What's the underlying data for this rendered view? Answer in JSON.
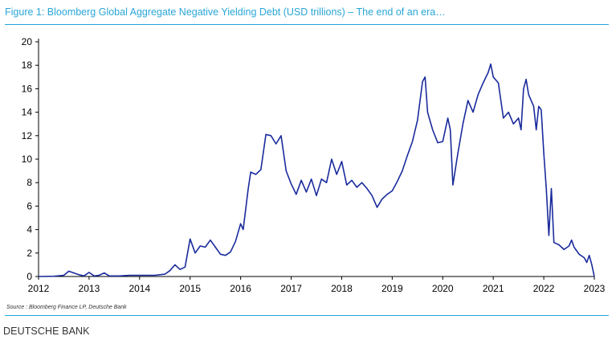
{
  "chart_data": {
    "type": "line",
    "title": "Figure 1: Bloomberg Global Aggregate Negative Yielding Debt (USD trillions) – The end of an era…",
    "xlabel": "",
    "ylabel": "",
    "xlim": [
      2012,
      2023
    ],
    "ylim": [
      0,
      20
    ],
    "x_ticks": [
      "2012",
      "2013",
      "2014",
      "2015",
      "2016",
      "2017",
      "2018",
      "2019",
      "2020",
      "2021",
      "2022",
      "2023"
    ],
    "y_ticks": [
      "0",
      "2",
      "4",
      "6",
      "8",
      "10",
      "12",
      "14",
      "16",
      "18",
      "20"
    ],
    "grid": false,
    "legend": "none",
    "line_color": "#1a2b9c",
    "series": [
      {
        "values": [
          [
            2012.0,
            0.0
          ],
          [
            2012.3,
            0.02
          ],
          [
            2012.5,
            0.1
          ],
          [
            2012.6,
            0.45
          ],
          [
            2012.7,
            0.3
          ],
          [
            2012.8,
            0.15
          ],
          [
            2012.9,
            0.05
          ],
          [
            2013.0,
            0.35
          ],
          [
            2013.1,
            0.05
          ],
          [
            2013.2,
            0.1
          ],
          [
            2013.3,
            0.3
          ],
          [
            2013.4,
            0.05
          ],
          [
            2013.6,
            0.05
          ],
          [
            2013.8,
            0.1
          ],
          [
            2014.0,
            0.1
          ],
          [
            2014.3,
            0.1
          ],
          [
            2014.5,
            0.2
          ],
          [
            2014.6,
            0.5
          ],
          [
            2014.7,
            1.0
          ],
          [
            2014.8,
            0.6
          ],
          [
            2014.9,
            0.8
          ],
          [
            2015.0,
            3.2
          ],
          [
            2015.1,
            2.0
          ],
          [
            2015.2,
            2.6
          ],
          [
            2015.3,
            2.5
          ],
          [
            2015.4,
            3.1
          ],
          [
            2015.5,
            2.5
          ],
          [
            2015.6,
            1.9
          ],
          [
            2015.7,
            1.8
          ],
          [
            2015.8,
            2.1
          ],
          [
            2015.9,
            3.0
          ],
          [
            2016.0,
            4.5
          ],
          [
            2016.05,
            4.0
          ],
          [
            2016.15,
            7.5
          ],
          [
            2016.2,
            8.9
          ],
          [
            2016.3,
            8.7
          ],
          [
            2016.4,
            9.1
          ],
          [
            2016.5,
            12.1
          ],
          [
            2016.6,
            12.0
          ],
          [
            2016.7,
            11.3
          ],
          [
            2016.8,
            12.0
          ],
          [
            2016.9,
            9.0
          ],
          [
            2017.0,
            7.9
          ],
          [
            2017.1,
            7.0
          ],
          [
            2017.2,
            8.2
          ],
          [
            2017.3,
            7.2
          ],
          [
            2017.4,
            8.3
          ],
          [
            2017.5,
            6.9
          ],
          [
            2017.6,
            8.3
          ],
          [
            2017.7,
            8.0
          ],
          [
            2017.8,
            10.0
          ],
          [
            2017.9,
            8.7
          ],
          [
            2018.0,
            9.8
          ],
          [
            2018.1,
            7.8
          ],
          [
            2018.2,
            8.2
          ],
          [
            2018.3,
            7.6
          ],
          [
            2018.4,
            8.0
          ],
          [
            2018.5,
            7.5
          ],
          [
            2018.6,
            6.9
          ],
          [
            2018.7,
            5.9
          ],
          [
            2018.8,
            6.6
          ],
          [
            2018.9,
            7.0
          ],
          [
            2019.0,
            7.3
          ],
          [
            2019.1,
            8.1
          ],
          [
            2019.2,
            9.0
          ],
          [
            2019.3,
            10.3
          ],
          [
            2019.4,
            11.5
          ],
          [
            2019.5,
            13.3
          ],
          [
            2019.6,
            16.6
          ],
          [
            2019.65,
            17.0
          ],
          [
            2019.7,
            14.0
          ],
          [
            2019.8,
            12.5
          ],
          [
            2019.9,
            11.4
          ],
          [
            2020.0,
            11.5
          ],
          [
            2020.1,
            13.5
          ],
          [
            2020.15,
            12.5
          ],
          [
            2020.2,
            7.8
          ],
          [
            2020.3,
            10.5
          ],
          [
            2020.4,
            13.0
          ],
          [
            2020.5,
            15.0
          ],
          [
            2020.6,
            14.0
          ],
          [
            2020.7,
            15.5
          ],
          [
            2020.8,
            16.5
          ],
          [
            2020.9,
            17.4
          ],
          [
            2020.95,
            18.1
          ],
          [
            2021.0,
            17.0
          ],
          [
            2021.1,
            16.5
          ],
          [
            2021.2,
            13.5
          ],
          [
            2021.3,
            14.0
          ],
          [
            2021.4,
            13.0
          ],
          [
            2021.5,
            13.5
          ],
          [
            2021.55,
            12.5
          ],
          [
            2021.6,
            16.0
          ],
          [
            2021.65,
            16.8
          ],
          [
            2021.7,
            15.5
          ],
          [
            2021.8,
            14.5
          ],
          [
            2021.85,
            12.5
          ],
          [
            2021.9,
            14.5
          ],
          [
            2021.95,
            14.2
          ],
          [
            2022.0,
            10.5
          ],
          [
            2022.05,
            7.5
          ],
          [
            2022.1,
            3.5
          ],
          [
            2022.15,
            7.5
          ],
          [
            2022.2,
            2.9
          ],
          [
            2022.3,
            2.7
          ],
          [
            2022.4,
            2.3
          ],
          [
            2022.5,
            2.6
          ],
          [
            2022.55,
            3.1
          ],
          [
            2022.6,
            2.5
          ],
          [
            2022.7,
            1.9
          ],
          [
            2022.8,
            1.6
          ],
          [
            2022.85,
            1.2
          ],
          [
            2022.9,
            1.8
          ],
          [
            2022.95,
            1.0
          ],
          [
            2023.0,
            0.0
          ]
        ]
      }
    ]
  },
  "footer": {
    "source": "Source : Bloomberg Finance LP, Deutsche Bank",
    "brand": "DEUTSCHE BANK"
  }
}
